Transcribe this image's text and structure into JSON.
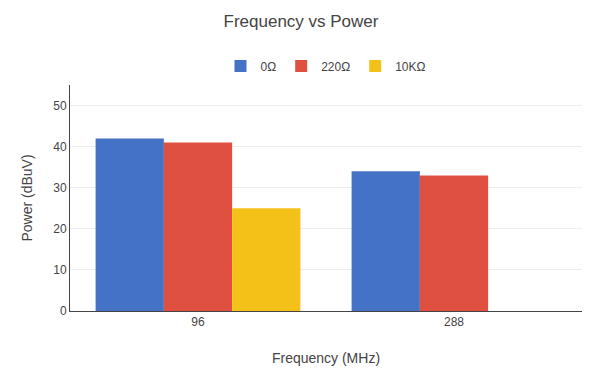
{
  "chart_data": {
    "type": "bar",
    "title": "Frequency vs Power",
    "xlabel": "Frequency (MHz)",
    "ylabel": "Power (dBuV)",
    "categories": [
      "96",
      "288"
    ],
    "series": [
      {
        "name": "0Ω",
        "color": "#4472C4",
        "values": [
          42,
          34
        ]
      },
      {
        "name": "220Ω",
        "color": "#E05040",
        "values": [
          41,
          33
        ]
      },
      {
        "name": "10KΩ",
        "color": "#F4C118",
        "values": [
          25,
          null
        ]
      }
    ],
    "ylim": [
      0,
      55
    ],
    "yticks": [
      0,
      10,
      20,
      30,
      40,
      50
    ],
    "grid": true,
    "legend": "top"
  }
}
